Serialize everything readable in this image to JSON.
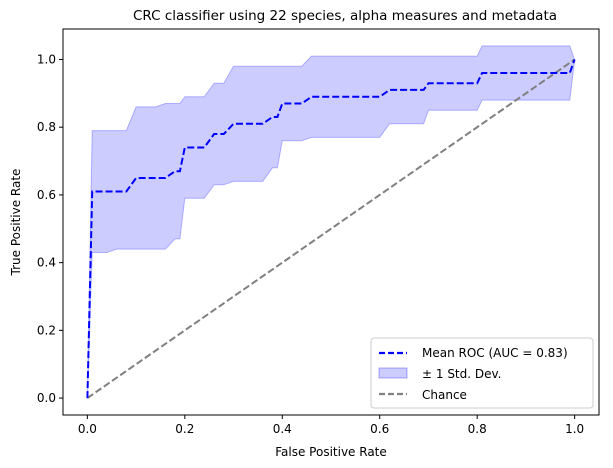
{
  "chart_data": {
    "type": "line",
    "title": "CRC classifier using 22 species, alpha measures and metadata",
    "xlabel": "False Positive Rate",
    "ylabel": "True Positive Rate",
    "xlim": [
      -0.05,
      1.05
    ],
    "ylim": [
      -0.05,
      1.09
    ],
    "xticks": [
      0.0,
      0.2,
      0.4,
      0.6,
      0.8,
      1.0
    ],
    "xtick_labels": [
      "0.0",
      "0.2",
      "0.4",
      "0.6",
      "0.8",
      "1.0"
    ],
    "yticks": [
      0.0,
      0.2,
      0.4,
      0.6,
      0.8,
      1.0
    ],
    "ytick_labels": [
      "0.0",
      "0.2",
      "0.4",
      "0.6",
      "0.8",
      "1.0"
    ],
    "grid": false,
    "legend_position": "bottom-right",
    "series": [
      {
        "name": "Mean ROC (AUC = 0.83)",
        "kind": "line",
        "style": "dashed",
        "color": "#0000ff",
        "x": [
          0.0,
          0.01,
          0.02,
          0.04,
          0.06,
          0.08,
          0.1,
          0.12,
          0.14,
          0.16,
          0.18,
          0.19,
          0.2,
          0.22,
          0.24,
          0.26,
          0.27,
          0.28,
          0.3,
          0.32,
          0.34,
          0.36,
          0.38,
          0.39,
          0.4,
          0.42,
          0.44,
          0.46,
          0.5,
          0.55,
          0.6,
          0.62,
          0.65,
          0.69,
          0.7,
          0.72,
          0.75,
          0.8,
          0.81,
          0.85,
          0.9,
          0.95,
          0.99,
          1.0
        ],
        "y": [
          0.0,
          0.61,
          0.61,
          0.61,
          0.61,
          0.61,
          0.65,
          0.65,
          0.65,
          0.65,
          0.67,
          0.67,
          0.74,
          0.74,
          0.74,
          0.78,
          0.78,
          0.78,
          0.81,
          0.81,
          0.81,
          0.81,
          0.83,
          0.83,
          0.87,
          0.87,
          0.87,
          0.89,
          0.89,
          0.89,
          0.89,
          0.91,
          0.91,
          0.91,
          0.93,
          0.93,
          0.93,
          0.93,
          0.96,
          0.96,
          0.96,
          0.96,
          0.96,
          1.0
        ]
      },
      {
        "name": "± 1 Std. Dev.",
        "kind": "band",
        "color": "#0000ff",
        "opacity": 0.2,
        "x": [
          0.0,
          0.01,
          0.02,
          0.04,
          0.06,
          0.08,
          0.1,
          0.12,
          0.14,
          0.16,
          0.18,
          0.19,
          0.2,
          0.22,
          0.24,
          0.26,
          0.27,
          0.28,
          0.3,
          0.32,
          0.34,
          0.36,
          0.38,
          0.39,
          0.4,
          0.42,
          0.44,
          0.46,
          0.5,
          0.55,
          0.6,
          0.62,
          0.65,
          0.69,
          0.7,
          0.72,
          0.75,
          0.8,
          0.81,
          0.85,
          0.9,
          0.95,
          0.99,
          1.0
        ],
        "upper": [
          0.0,
          0.79,
          0.79,
          0.79,
          0.79,
          0.79,
          0.86,
          0.86,
          0.86,
          0.87,
          0.87,
          0.87,
          0.89,
          0.89,
          0.89,
          0.93,
          0.93,
          0.93,
          0.98,
          0.98,
          0.98,
          0.98,
          0.98,
          0.98,
          0.98,
          0.98,
          0.98,
          1.01,
          1.01,
          1.01,
          1.01,
          1.01,
          1.01,
          1.01,
          1.01,
          1.01,
          1.01,
          1.01,
          1.04,
          1.04,
          1.04,
          1.04,
          1.04,
          1.0
        ],
        "lower": [
          0.0,
          0.43,
          0.43,
          0.43,
          0.44,
          0.44,
          0.44,
          0.44,
          0.44,
          0.44,
          0.47,
          0.47,
          0.59,
          0.59,
          0.59,
          0.63,
          0.63,
          0.63,
          0.64,
          0.64,
          0.64,
          0.64,
          0.68,
          0.68,
          0.76,
          0.76,
          0.76,
          0.77,
          0.77,
          0.77,
          0.77,
          0.81,
          0.81,
          0.81,
          0.85,
          0.85,
          0.85,
          0.85,
          0.88,
          0.88,
          0.88,
          0.88,
          0.88,
          1.0
        ]
      },
      {
        "name": "Chance",
        "kind": "line",
        "style": "dashed",
        "color": "#808080",
        "x": [
          0.0,
          1.0
        ],
        "y": [
          0.0,
          1.0
        ]
      }
    ]
  }
}
